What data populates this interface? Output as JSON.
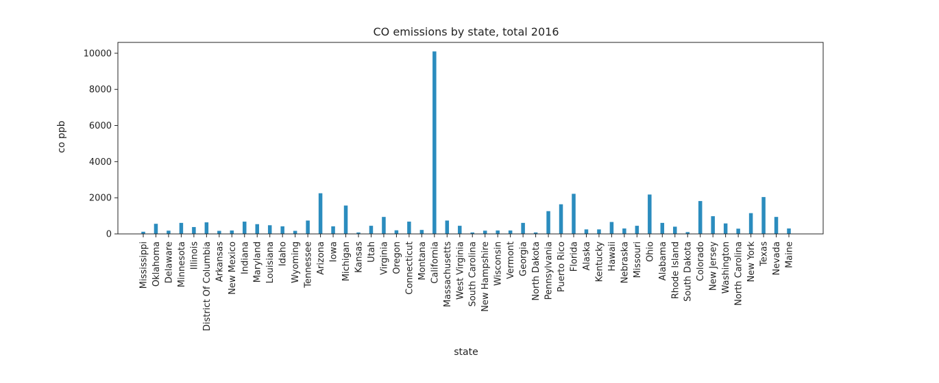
{
  "chart_data": {
    "type": "bar",
    "title": "CO emissions by state, total 2016",
    "xlabel": "state",
    "ylabel": "co ppb",
    "ylim": [
      0,
      10600
    ],
    "yticks": [
      0,
      2000,
      4000,
      6000,
      8000,
      10000
    ],
    "grid": false,
    "bar_color": "#2b8cbe",
    "categories": [
      "Mississippi",
      "Oklahoma",
      "Delaware",
      "Minnesota",
      "Illinois",
      "District Of Columbia",
      "Arkansas",
      "New Mexico",
      "Indiana",
      "Maryland",
      "Louisiana",
      "Idaho",
      "Wyoming",
      "Tennessee",
      "Arizona",
      "Iowa",
      "Michigan",
      "Kansas",
      "Utah",
      "Virginia",
      "Oregon",
      "Connecticut",
      "Montana",
      "California",
      "Massachusetts",
      "West Virginia",
      "South Carolina",
      "New Hampshire",
      "Wisconsin",
      "Vermont",
      "Georgia",
      "North Dakota",
      "Pennsylvania",
      "Puerto Rico",
      "Florida",
      "Alaska",
      "Kentucky",
      "Hawaii",
      "Nebraska",
      "Missouri",
      "Ohio",
      "Alabama",
      "Rhode Island",
      "South Dakota",
      "Colorado",
      "New Jersey",
      "Washington",
      "North Carolina",
      "New York",
      "Texas",
      "Nevada",
      "Maine"
    ],
    "values": [
      120,
      560,
      180,
      610,
      380,
      640,
      170,
      190,
      680,
      540,
      480,
      420,
      170,
      740,
      2250,
      420,
      1570,
      80,
      450,
      940,
      200,
      680,
      220,
      10100,
      740,
      450,
      80,
      180,
      190,
      190,
      610,
      80,
      1260,
      1640,
      2220,
      250,
      250,
      660,
      300,
      450,
      2180,
      610,
      400,
      100,
      1820,
      980,
      580,
      290,
      1150,
      2040,
      940,
      300
    ]
  }
}
